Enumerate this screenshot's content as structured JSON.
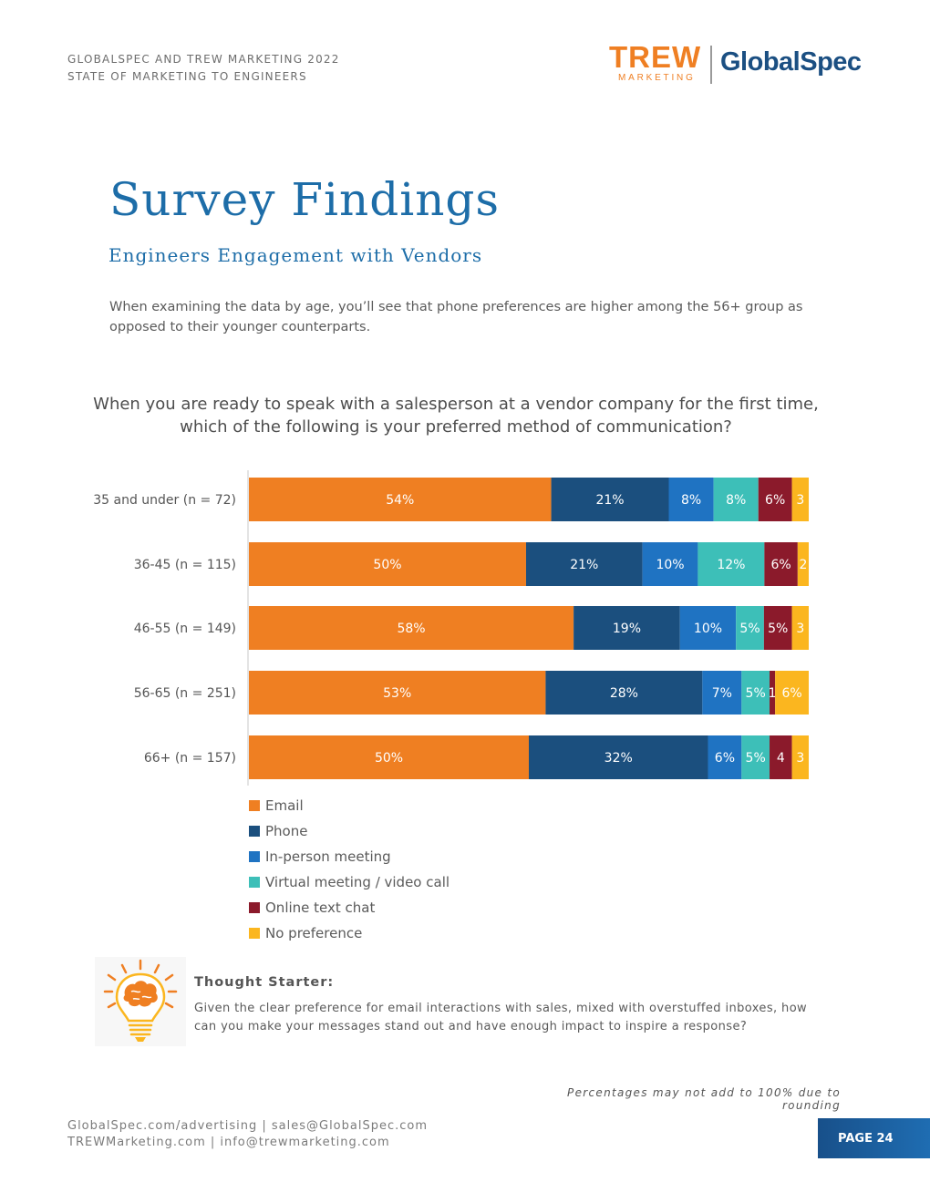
{
  "header": {
    "line1": "GLOBALSPEC AND TREW MARKETING 2022",
    "line2": "STATE OF MARKETING TO ENGINEERS",
    "logo_trew": "TREW",
    "logo_trew_sub": "MARKETING",
    "logo_globalspec": "GlobalSpec"
  },
  "page_title": "Survey Findings",
  "page_subtitle": "Engineers Engagement with Vendors",
  "intro": "When examining the data by age, you’ll see that phone preferences are higher among the 56+ group as opposed to their younger counterparts.",
  "chart_data": {
    "type": "bar",
    "orientation": "horizontal",
    "stacked": true,
    "title": "When you are ready to speak with a salesperson at a vendor company for the first time, which of the following is your preferred method of communication?",
    "unit": "%",
    "categories": [
      "35 and under (n = 72)",
      "36-45 (n = 115)",
      "46-55 (n = 149)",
      "56-65 (n = 251)",
      "66+ (n = 157)"
    ],
    "series": [
      {
        "name": "Email",
        "color": "#ef7f22",
        "values": [
          54,
          50,
          58,
          53,
          50
        ],
        "labels": [
          "54%",
          "50%",
          "58%",
          "53%",
          "50%"
        ]
      },
      {
        "name": "Phone",
        "color": "#1b4f7e",
        "values": [
          21,
          21,
          19,
          28,
          32
        ],
        "labels": [
          "21%",
          "21%",
          "19%",
          "28%",
          "32%"
        ]
      },
      {
        "name": "In-person meeting",
        "color": "#1f73c2",
        "values": [
          8,
          10,
          10,
          7,
          6
        ],
        "labels": [
          "8%",
          "10%",
          "10%",
          "7%",
          "6%"
        ]
      },
      {
        "name": "Virtual meeting / video call",
        "color": "#3dbfb8",
        "values": [
          8,
          12,
          5,
          5,
          5
        ],
        "labels": [
          "8%",
          "12%",
          "5%",
          "5%",
          "5%"
        ]
      },
      {
        "name": "Online text chat",
        "color": "#8b1a2b",
        "values": [
          6,
          6,
          5,
          1,
          4
        ],
        "labels": [
          "6%",
          "6%",
          "5%",
          "1",
          "4"
        ]
      },
      {
        "name": "No preference",
        "color": "#fbb61f",
        "values": [
          3,
          2,
          3,
          6,
          3
        ],
        "labels": [
          "3",
          "2",
          "3",
          "6%",
          "3"
        ]
      }
    ]
  },
  "thought_starter": {
    "title": "Thought Starter:",
    "body": "Given the clear preference for email interactions with sales, mixed with overstuffed inboxes, how can you make your messages stand out and have enough impact to inspire a response?"
  },
  "footnote": "Percentages may not add to 100% due to rounding",
  "footer": {
    "line1": "GlobalSpec.com/advertising  |  sales@GlobalSpec.com",
    "line2": "TREWMarketing.com  |  info@trewmarketing.com",
    "page_label": "PAGE 24"
  }
}
